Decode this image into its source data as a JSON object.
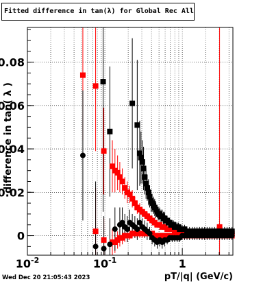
{
  "title": "Fitted difference in tan(λ) for Global Rec All EtapT",
  "timestamp": "Wed Dec 20 21:05:43 2023",
  "chart_data": {
    "type": "scatter",
    "title": "Fitted difference in tan(λ) for Global Rec All EtapT",
    "xlabel": "pT/|q| (GeV/c)",
    "ylabel": "difference in tan( λ )",
    "x_scale": "log",
    "xlim": [
      0.01,
      4.5
    ],
    "ylim": [
      -0.009,
      0.096
    ],
    "x_ticks": [
      {
        "v": 0.01,
        "label": "10^-2"
      },
      {
        "v": 0.1,
        "label": "10^-1"
      },
      {
        "v": 1,
        "label": "1"
      }
    ],
    "y_ticks": [
      {
        "v": 0,
        "label": "0"
      },
      {
        "v": 0.02,
        "label": "0.02"
      },
      {
        "v": 0.04,
        "label": "0.04"
      },
      {
        "v": 0.06,
        "label": "0.06"
      },
      {
        "v": 0.08,
        "label": "0.08"
      }
    ],
    "grid": true,
    "series": [
      {
        "marker": "square",
        "color": "#ff0000",
        "name": "",
        "points": [
          [
            0.052,
            0.074,
            0.03
          ],
          [
            0.076,
            0.069,
            0.03
          ],
          [
            0.097,
            0.039,
            0.02
          ],
          [
            0.125,
            0.032,
            0.012
          ],
          [
            0.135,
            0.03,
            0.01
          ],
          [
            0.146,
            0.029,
            0.008
          ],
          [
            0.156,
            0.027,
            0.007
          ],
          [
            0.168,
            0.025,
            0.006
          ],
          [
            0.181,
            0.022,
            0.005
          ],
          [
            0.195,
            0.02,
            0.005
          ],
          [
            0.21,
            0.019,
            0.004
          ],
          [
            0.226,
            0.017,
            0.004
          ],
          [
            0.244,
            0.015,
            0.003
          ],
          [
            0.262,
            0.013,
            0.003
          ],
          [
            0.282,
            0.012,
            0.003
          ],
          [
            0.304,
            0.011,
            0.002
          ],
          [
            0.327,
            0.01,
            0.002
          ],
          [
            0.352,
            0.009,
            0.002
          ],
          [
            0.379,
            0.008,
            0.002
          ],
          [
            0.408,
            0.007,
            0.002
          ],
          [
            0.44,
            0.006,
            0.002
          ],
          [
            0.474,
            0.005,
            0.001
          ],
          [
            0.51,
            0.005,
            0.001
          ],
          [
            0.55,
            0.004,
            0.001
          ],
          [
            0.592,
            0.004,
            0.001
          ],
          [
            0.638,
            0.003,
            0.001
          ],
          [
            0.687,
            0.003,
            0.001
          ],
          [
            0.74,
            0.003,
            0.001
          ],
          [
            0.797,
            0.002,
            0.001
          ],
          [
            0.858,
            0.002,
            0.001
          ],
          [
            0.924,
            0.002,
            0.001
          ],
          [
            0.996,
            0.002,
            0.001
          ],
          [
            1.07,
            0.002,
            0.001
          ],
          [
            1.15,
            0.0015,
            0.001
          ],
          [
            1.24,
            0.0015,
            0.001
          ],
          [
            1.34,
            0.0015,
            0.001
          ],
          [
            1.44,
            0.001,
            0.001
          ],
          [
            1.55,
            0.001,
            0.001
          ],
          [
            1.67,
            0.001,
            0.001
          ],
          [
            1.8,
            0.001,
            0.001
          ],
          [
            1.94,
            0.001,
            0.001
          ],
          [
            2.09,
            0.001,
            0.001
          ],
          [
            2.25,
            0.001,
            0.001
          ],
          [
            2.42,
            0.001,
            0.001
          ],
          [
            2.61,
            0.001,
            0.001
          ],
          [
            2.81,
            0.001,
            0.001
          ],
          [
            3.03,
            0.004,
            0.1
          ],
          [
            3.26,
            0.001,
            0.001
          ],
          [
            3.51,
            0.001,
            0.001
          ],
          [
            3.78,
            0.001,
            0.001
          ],
          [
            4.07,
            0.001,
            0.001
          ],
          [
            4.38,
            0.001,
            0.001
          ]
        ]
      },
      {
        "marker": "square",
        "color": "#ff0000",
        "name": "",
        "points": [
          [
            0.076,
            0.002,
            0.02
          ],
          [
            0.097,
            -0.002,
            0.01
          ],
          [
            0.125,
            -0.003,
            0.006
          ],
          [
            0.135,
            -0.003,
            0.005
          ],
          [
            0.146,
            -0.002,
            0.004
          ],
          [
            0.156,
            -0.001,
            0.004
          ],
          [
            0.168,
            -0.001,
            0.003
          ],
          [
            0.181,
            0.0,
            0.003
          ],
          [
            0.195,
            0.0,
            0.003
          ],
          [
            0.21,
            0.0,
            0.002
          ],
          [
            0.226,
            0.001,
            0.002
          ],
          [
            0.244,
            0.001,
            0.002
          ],
          [
            0.262,
            0.001,
            0.002
          ],
          [
            0.282,
            0.001,
            0.002
          ],
          [
            0.304,
            0.001,
            0.002
          ],
          [
            0.327,
            0.001,
            0.002
          ],
          [
            0.352,
            0.001,
            0.001
          ],
          [
            0.379,
            0.001,
            0.001
          ],
          [
            0.408,
            0.001,
            0.001
          ],
          [
            0.44,
            0.0,
            0.001
          ],
          [
            0.474,
            0.0,
            0.001
          ],
          [
            0.51,
            0.0,
            0.001
          ],
          [
            0.55,
            0.0,
            0.001
          ],
          [
            0.592,
            0.0,
            0.001
          ],
          [
            0.638,
            0.0,
            0.001
          ],
          [
            0.687,
            0.0,
            0.001
          ],
          [
            0.74,
            0.0,
            0.001
          ],
          [
            0.797,
            0.0,
            0.001
          ],
          [
            0.858,
            0.0,
            0.001
          ],
          [
            0.924,
            0.0,
            0.001
          ],
          [
            0.996,
            0.0,
            0.001
          ],
          [
            1.07,
            0.0,
            0.001
          ],
          [
            1.15,
            0.0,
            0.001
          ],
          [
            1.24,
            0.0,
            0.001
          ],
          [
            1.34,
            0.0,
            0.001
          ],
          [
            1.44,
            0.0,
            0.001
          ],
          [
            1.55,
            0.0,
            0.001
          ],
          [
            1.67,
            0.0,
            0.001
          ],
          [
            1.8,
            0.0,
            0.001
          ],
          [
            1.94,
            0.0,
            0.001
          ],
          [
            2.09,
            0.0,
            0.001
          ],
          [
            2.25,
            0.0,
            0.001
          ],
          [
            2.42,
            0.0,
            0.001
          ],
          [
            2.61,
            0.0,
            0.001
          ],
          [
            2.81,
            0.0,
            0.001
          ],
          [
            3.26,
            0.0,
            0.001
          ],
          [
            3.51,
            0.0,
            0.001
          ],
          [
            3.78,
            0.0,
            0.001
          ],
          [
            4.07,
            0.0,
            0.001
          ],
          [
            4.38,
            0.0,
            0.001
          ]
        ]
      },
      {
        "marker": "square",
        "color": "#000000",
        "name": "",
        "points": [
          [
            0.095,
            0.071,
            0.06
          ],
          [
            0.116,
            0.048,
            0.03
          ],
          [
            0.226,
            0.061,
            0.03
          ],
          [
            0.262,
            0.051,
            0.03
          ],
          [
            0.282,
            0.038,
            0.015
          ],
          [
            0.293,
            0.036,
            0.012
          ],
          [
            0.304,
            0.034,
            0.01
          ],
          [
            0.316,
            0.031,
            0.01
          ],
          [
            0.327,
            0.027,
            0.008
          ],
          [
            0.34,
            0.024,
            0.007
          ],
          [
            0.352,
            0.022,
            0.006
          ],
          [
            0.366,
            0.02,
            0.006
          ],
          [
            0.379,
            0.018,
            0.005
          ],
          [
            0.395,
            0.016,
            0.005
          ],
          [
            0.408,
            0.015,
            0.004
          ],
          [
            0.425,
            0.014,
            0.004
          ],
          [
            0.44,
            0.013,
            0.004
          ],
          [
            0.455,
            0.012,
            0.004
          ],
          [
            0.474,
            0.011,
            0.003
          ],
          [
            0.49,
            0.01,
            0.003
          ],
          [
            0.51,
            0.01,
            0.003
          ],
          [
            0.53,
            0.009,
            0.003
          ],
          [
            0.55,
            0.009,
            0.003
          ],
          [
            0.57,
            0.008,
            0.003
          ],
          [
            0.592,
            0.008,
            0.003
          ],
          [
            0.615,
            0.007,
            0.002
          ],
          [
            0.638,
            0.007,
            0.002
          ],
          [
            0.663,
            0.006,
            0.002
          ],
          [
            0.687,
            0.006,
            0.002
          ],
          [
            0.713,
            0.005,
            0.002
          ],
          [
            0.74,
            0.005,
            0.002
          ],
          [
            0.77,
            0.005,
            0.002
          ],
          [
            0.797,
            0.004,
            0.002
          ],
          [
            0.83,
            0.004,
            0.002
          ],
          [
            0.858,
            0.004,
            0.002
          ],
          [
            0.89,
            0.004,
            0.002
          ],
          [
            0.924,
            0.003,
            0.002
          ],
          [
            0.96,
            0.003,
            0.002
          ],
          [
            0.996,
            0.003,
            0.002
          ],
          [
            1.07,
            0.003,
            0.002
          ],
          [
            1.15,
            0.002,
            0.002
          ],
          [
            1.24,
            0.002,
            0.002
          ],
          [
            1.34,
            0.002,
            0.002
          ],
          [
            1.44,
            0.002,
            0.002
          ],
          [
            1.55,
            0.002,
            0.002
          ],
          [
            1.67,
            0.002,
            0.002
          ],
          [
            1.8,
            0.002,
            0.002
          ],
          [
            1.94,
            0.002,
            0.002
          ],
          [
            2.09,
            0.002,
            0.002
          ],
          [
            2.25,
            0.002,
            0.002
          ],
          [
            2.42,
            0.002,
            0.002
          ],
          [
            2.61,
            0.002,
            0.002
          ],
          [
            2.81,
            0.002,
            0.002
          ],
          [
            3.03,
            0.002,
            0.002
          ],
          [
            3.26,
            0.002,
            0.002
          ],
          [
            3.51,
            0.002,
            0.002
          ],
          [
            3.78,
            0.002,
            0.002
          ],
          [
            4.07,
            0.002,
            0.002
          ],
          [
            4.38,
            0.002,
            0.002
          ]
        ]
      },
      {
        "marker": "circle",
        "color": "#000000",
        "name": "",
        "points": [
          [
            0.052,
            0.037,
            0.03
          ],
          [
            0.076,
            -0.005,
            0.03
          ],
          [
            0.097,
            -0.006,
            0.015
          ],
          [
            0.116,
            -0.004,
            0.012
          ],
          [
            0.135,
            0.003,
            0.01
          ],
          [
            0.156,
            0.005,
            0.008
          ],
          [
            0.168,
            0.006,
            0.007
          ],
          [
            0.181,
            0.004,
            0.006
          ],
          [
            0.195,
            0.003,
            0.006
          ],
          [
            0.21,
            0.006,
            0.006
          ],
          [
            0.226,
            0.005,
            0.005
          ],
          [
            0.244,
            0.004,
            0.005
          ],
          [
            0.262,
            0.003,
            0.005
          ],
          [
            0.282,
            0.006,
            0.005
          ],
          [
            0.304,
            0.004,
            0.004
          ],
          [
            0.327,
            0.003,
            0.004
          ],
          [
            0.352,
            0.002,
            0.004
          ],
          [
            0.379,
            0.001,
            0.003
          ],
          [
            0.408,
            -0.001,
            0.003
          ],
          [
            0.44,
            -0.002,
            0.003
          ],
          [
            0.474,
            -0.003,
            0.003
          ],
          [
            0.51,
            -0.002,
            0.003
          ],
          [
            0.55,
            -0.003,
            0.003
          ],
          [
            0.592,
            -0.002,
            0.003
          ],
          [
            0.638,
            -0.002,
            0.002
          ],
          [
            0.687,
            -0.001,
            0.002
          ],
          [
            0.74,
            -0.001,
            0.002
          ],
          [
            0.797,
            -0.001,
            0.002
          ],
          [
            0.858,
            -0.001,
            0.002
          ],
          [
            0.924,
            -0.001,
            0.002
          ],
          [
            0.996,
            0.0,
            0.002
          ],
          [
            1.07,
            0.0,
            0.002
          ],
          [
            1.15,
            0.0,
            0.002
          ],
          [
            1.24,
            0.0,
            0.002
          ],
          [
            1.34,
            0.0,
            0.002
          ],
          [
            1.44,
            0.0,
            0.002
          ],
          [
            1.55,
            0.0,
            0.002
          ],
          [
            1.67,
            0.0,
            0.002
          ],
          [
            1.8,
            0.0,
            0.002
          ],
          [
            1.94,
            0.0,
            0.002
          ],
          [
            2.09,
            0.0,
            0.002
          ],
          [
            2.25,
            0.0,
            0.002
          ],
          [
            2.42,
            0.0,
            0.002
          ],
          [
            2.61,
            0.0,
            0.002
          ],
          [
            2.81,
            0.0,
            0.002
          ],
          [
            3.03,
            0.0,
            0.002
          ],
          [
            3.26,
            0.0,
            0.002
          ],
          [
            3.51,
            0.0,
            0.002
          ],
          [
            3.78,
            0.0,
            0.002
          ],
          [
            4.07,
            0.0,
            0.002
          ],
          [
            4.38,
            0.0,
            0.002
          ]
        ]
      }
    ]
  }
}
